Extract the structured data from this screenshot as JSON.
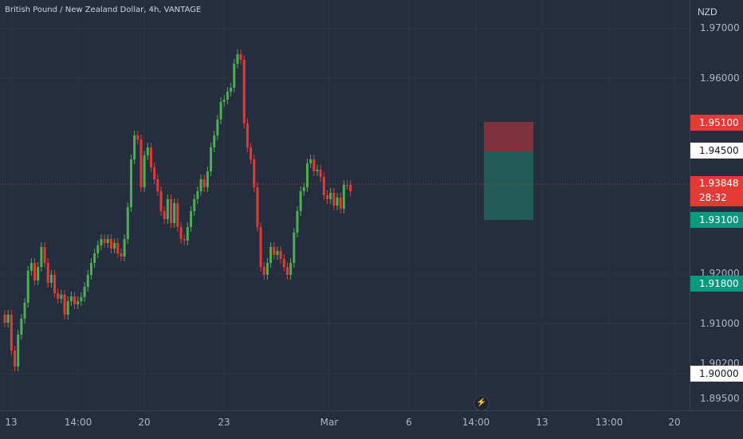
{
  "header": {
    "title": "British Pound / New Zealand Dollar, 4h, VANTAGE"
  },
  "price_axis": {
    "currency": "NZD",
    "labels": [
      "1.97000",
      "1.96000",
      "1.92000",
      "1.91000",
      "1.90200",
      "1.89500"
    ]
  },
  "tags": {
    "stop": "1.95100",
    "entry": "1.94500",
    "current_price": "1.93848",
    "countdown": "28:32",
    "target": "1.93100",
    "lower": "1.91800",
    "round": "1.90000"
  },
  "time_axis": {
    "labels": [
      "13",
      "14:00",
      "20",
      "23",
      "Mar",
      "6",
      "14:00",
      "13",
      "13:00",
      "20"
    ]
  },
  "colors": {
    "up": "#4caf50",
    "down": "#e53935",
    "bg": "#252e3e"
  },
  "icons": {
    "alert": "lightning-icon"
  }
}
